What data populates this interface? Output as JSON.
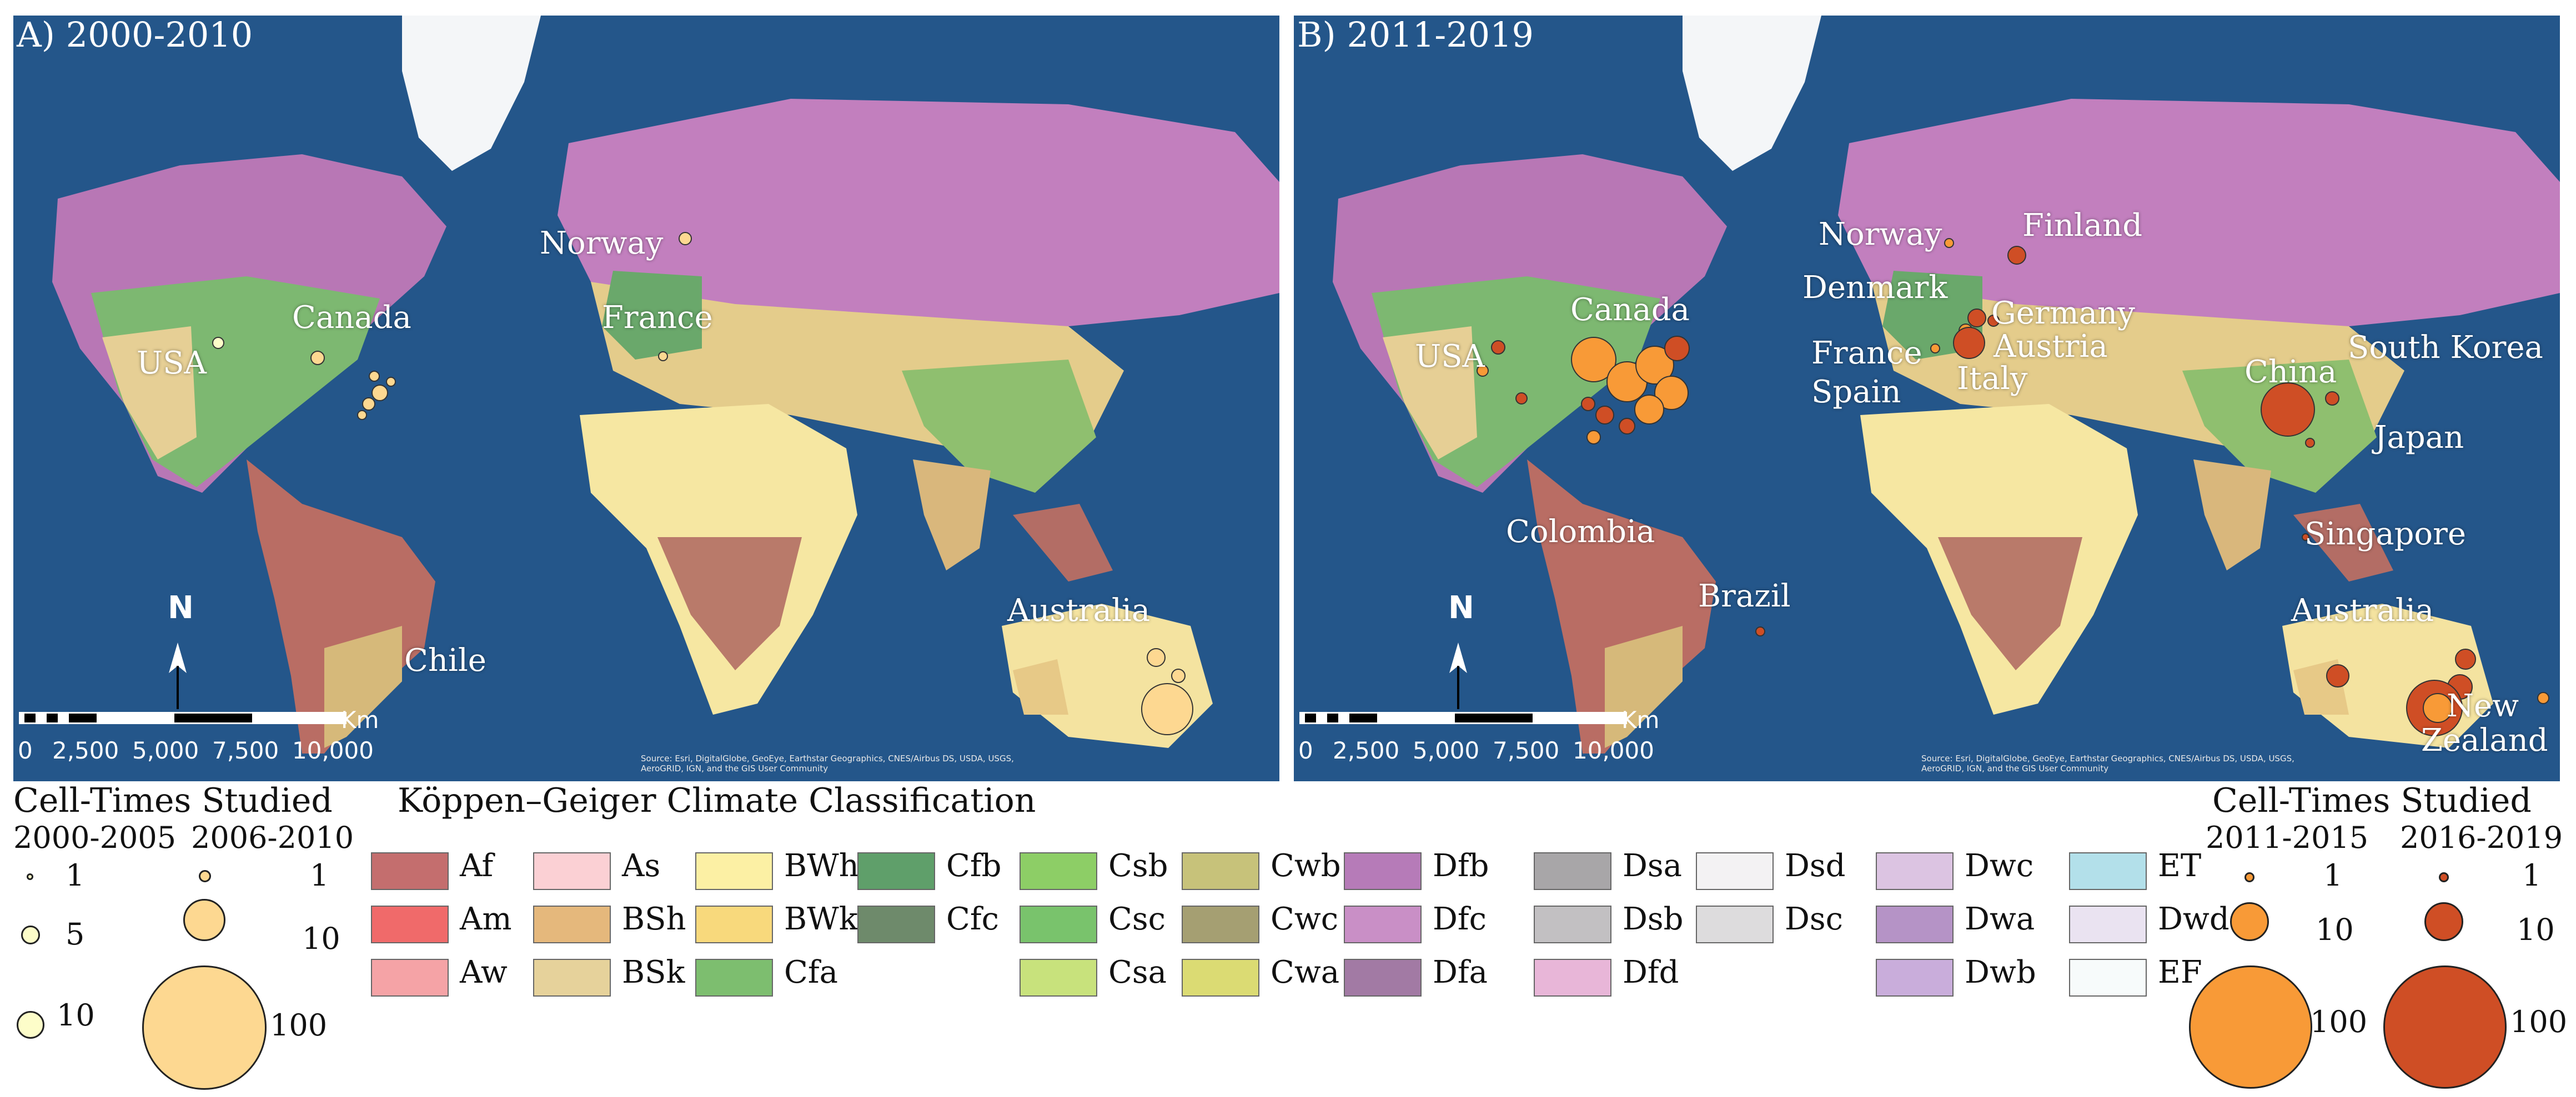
{
  "panels": {
    "a": {
      "title": "A) 2000-2010",
      "labels": [
        "Norway",
        "Canada",
        "France",
        "USA",
        "Australia",
        "Chile"
      ]
    },
    "b": {
      "title": "B) 2011-2019",
      "labels": [
        "Norway",
        "Finland",
        "Canada",
        "Denmark",
        "Germany",
        "USA",
        "France",
        "Austria",
        "Spain",
        "Italy",
        "China",
        "South Korea",
        "Japan",
        "Colombia",
        "Singapore",
        "Brazil",
        "Australia",
        "New",
        "Zealand"
      ]
    }
  },
  "scale": {
    "north": "N",
    "unit": "Km",
    "ticks": [
      "0",
      "2,500",
      "5,000",
      "7,500",
      "10,000"
    ]
  },
  "attribution": "Source: Esri, DigitalGlobe, GeoEye, Earthstar Geographics, CNES/Airbus DS, USDA, USGS, AeroGRID, IGN, and the GIS User Community",
  "legend_left": {
    "title": "Cell-Times Studied",
    "period_1": "2000-2005",
    "period_2": "2006-2010",
    "p1_sizes": [
      "1",
      "5",
      "10"
    ],
    "p2_sizes": [
      "1",
      "10",
      "100"
    ],
    "color_p1": "#fdfdc9",
    "color_p2": "#fdd891"
  },
  "legend_right": {
    "title": "Cell-Times Studied",
    "period_1": "2011-2015",
    "period_2": "2016-2019",
    "p1_sizes": [
      "1",
      "10",
      "100"
    ],
    "p2_sizes": [
      "1",
      "10",
      "100"
    ],
    "color_p1": "#f89a37",
    "color_p2": "#cf4e25"
  },
  "koppen": {
    "title": "Köppen–Geiger Climate Classification",
    "columns": [
      [
        {
          "code": "Af",
          "color": "#c46e6e"
        },
        {
          "code": "Am",
          "color": "#f06a6a"
        },
        {
          "code": "Aw",
          "color": "#f5a3a6"
        }
      ],
      [
        {
          "code": "As",
          "color": "#fbd0d4"
        },
        {
          "code": "BSh",
          "color": "#e5b87c"
        },
        {
          "code": "BSk",
          "color": "#e6d29b"
        }
      ],
      [
        {
          "code": "BWh",
          "color": "#fcf0a4"
        },
        {
          "code": "BWk",
          "color": "#f8d97c"
        },
        {
          "code": "Cfa",
          "color": "#7dbe6f"
        }
      ],
      [
        {
          "code": "Cfb",
          "color": "#5f9f6a"
        },
        {
          "code": "Cfc",
          "color": "#6e8a6b"
        },
        null
      ],
      [
        {
          "code": "Csb",
          "color": "#8dce66"
        },
        {
          "code": "Csc",
          "color": "#79c36c"
        },
        {
          "code": "Csa",
          "color": "#c8e27c"
        }
      ],
      [
        {
          "code": "Cwb",
          "color": "#c7c27a"
        },
        {
          "code": "Cwc",
          "color": "#a59f72"
        },
        {
          "code": "Cwa",
          "color": "#dbdb73"
        }
      ],
      [
        {
          "code": "Dfb",
          "color": "#b67bb8"
        },
        {
          "code": "Dfc",
          "color": "#c98fc6"
        },
        {
          "code": "Dfa",
          "color": "#a27aa4"
        }
      ],
      [
        {
          "code": "Dsa",
          "color": "#a8a6a8"
        },
        {
          "code": "Dsb",
          "color": "#c2c0c2"
        },
        {
          "code": "Dfd",
          "color": "#e8b6d8"
        }
      ],
      [
        {
          "code": "Dsd",
          "color": "#f3f2f3"
        },
        {
          "code": "Dsc",
          "color": "#dddcdd"
        },
        null
      ],
      [
        {
          "code": "Dwc",
          "color": "#dcc4e2"
        },
        {
          "code": "Dwa",
          "color": "#b593c6"
        },
        {
          "code": "Dwb",
          "color": "#c9addb"
        }
      ],
      [
        {
          "code": "ET",
          "color": "#b3e0ea"
        },
        {
          "code": "Dwd",
          "color": "#eae3f1"
        },
        {
          "code": "EF",
          "color": "#f7fbfb"
        }
      ]
    ]
  }
}
